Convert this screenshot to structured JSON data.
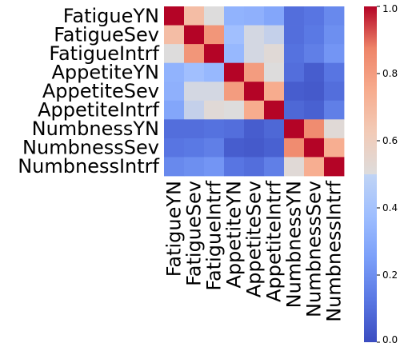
{
  "chart_data": {
    "type": "heatmap",
    "title": "",
    "xlabel": "",
    "ylabel": "",
    "x_labels": [
      "FatigueYN",
      "FatigueSev",
      "FatigueIntrf",
      "AppetiteYN",
      "AppetiteSev",
      "AppetiteIntrf",
      "NumbnessYN",
      "NumbnessSev",
      "NumbnessIntrf"
    ],
    "y_labels": [
      "FatigueYN",
      "FatigueSev",
      "FatigueIntrf",
      "AppetiteYN",
      "AppetiteSev",
      "AppetiteIntrf",
      "NumbnessYN",
      "NumbnessSev",
      "NumbnessIntrf"
    ],
    "values": [
      [
        1.0,
        0.68,
        0.5,
        0.33,
        0.32,
        0.28,
        0.1,
        0.12,
        0.18
      ],
      [
        0.68,
        1.0,
        0.82,
        0.38,
        0.48,
        0.45,
        0.1,
        0.13,
        0.2
      ],
      [
        0.5,
        0.82,
        1.0,
        0.35,
        0.48,
        0.52,
        0.11,
        0.15,
        0.22
      ],
      [
        0.33,
        0.38,
        0.35,
        1.0,
        0.8,
        0.5,
        0.1,
        0.05,
        0.12
      ],
      [
        0.32,
        0.48,
        0.48,
        0.8,
        1.0,
        0.75,
        0.05,
        0.04,
        0.1
      ],
      [
        0.28,
        0.45,
        0.52,
        0.5,
        0.75,
        1.0,
        0.08,
        0.06,
        0.15
      ],
      [
        0.1,
        0.1,
        0.11,
        0.1,
        0.05,
        0.08,
        1.0,
        0.85,
        0.52
      ],
      [
        0.12,
        0.13,
        0.15,
        0.05,
        0.04,
        0.06,
        0.85,
        1.0,
        0.74
      ],
      [
        0.18,
        0.2,
        0.22,
        0.12,
        0.1,
        0.15,
        0.52,
        0.74,
        1.0
      ]
    ],
    "colorbar": {
      "range": [
        0.0,
        1.0
      ],
      "ticks": [
        0.0,
        0.2,
        0.4,
        0.6,
        0.8,
        1.0
      ],
      "tick_labels": [
        "0.0",
        "0.2",
        "0.4",
        "0.6",
        "0.8",
        "1.0"
      ],
      "colormap": "coolwarm"
    },
    "grid": false,
    "legend": "colorbar-right"
  }
}
